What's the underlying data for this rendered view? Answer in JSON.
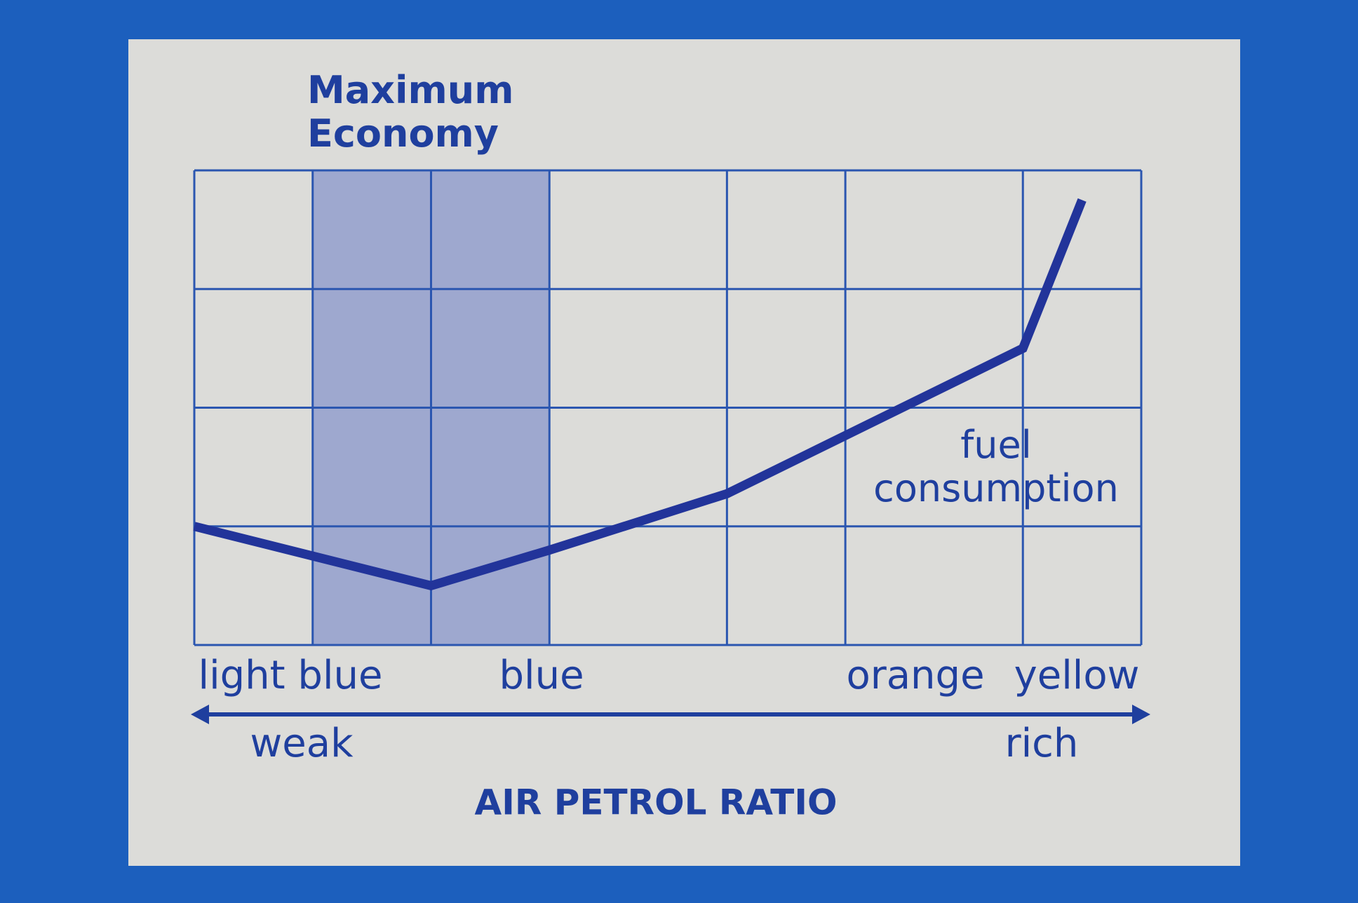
{
  "chart_data": {
    "type": "line",
    "title": "Maximum Economy",
    "x_label": "AIR PETROL RATIO",
    "x": [
      0,
      4,
      6,
      9,
      14,
      15
    ],
    "series": [
      {
        "name": "fuel consumption",
        "color": "#22349a",
        "values": [
          2,
          1,
          1.6,
          2.55,
          5,
          7.5
        ]
      }
    ],
    "xlim": [
      0,
      16
    ],
    "ylim": [
      0,
      8
    ],
    "xgrid": [
      0,
      2,
      4,
      6,
      9,
      11,
      14,
      16
    ],
    "ygrid": [
      0,
      2,
      4,
      6,
      8
    ],
    "grid_color": "#2b56b0",
    "highlight": [
      2,
      6
    ],
    "highlight_color": "#9ea8cf",
    "flame_colors": [
      "light blue",
      "blue",
      "orange",
      "yellow"
    ],
    "axis_ends": [
      "weak",
      "rich"
    ]
  }
}
